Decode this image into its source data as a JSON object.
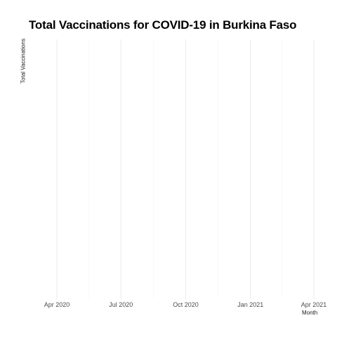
{
  "chart_data": {
    "type": "line",
    "title": "Total Vaccinations for COVID-19 in Burkina Faso",
    "xlabel": "Month",
    "ylabel": "Total Vaccinations",
    "x_ticks": [
      "Apr 2020",
      "Jul 2020",
      "Oct 2020",
      "Jan 2021",
      "Apr 2021"
    ],
    "x_tick_dates": [
      "2020-04-01",
      "2020-07-01",
      "2020-10-01",
      "2021-01-01",
      "2021-04-01"
    ],
    "xlim": [
      "2020-02-22",
      "2021-04-01"
    ],
    "y_ticks": [],
    "series": [],
    "grid": true,
    "legend": "none",
    "colors": {
      "grid_major": "#ebebeb",
      "grid_minor": "#f5f5f5",
      "tick_text": "#4d4d4d"
    }
  }
}
